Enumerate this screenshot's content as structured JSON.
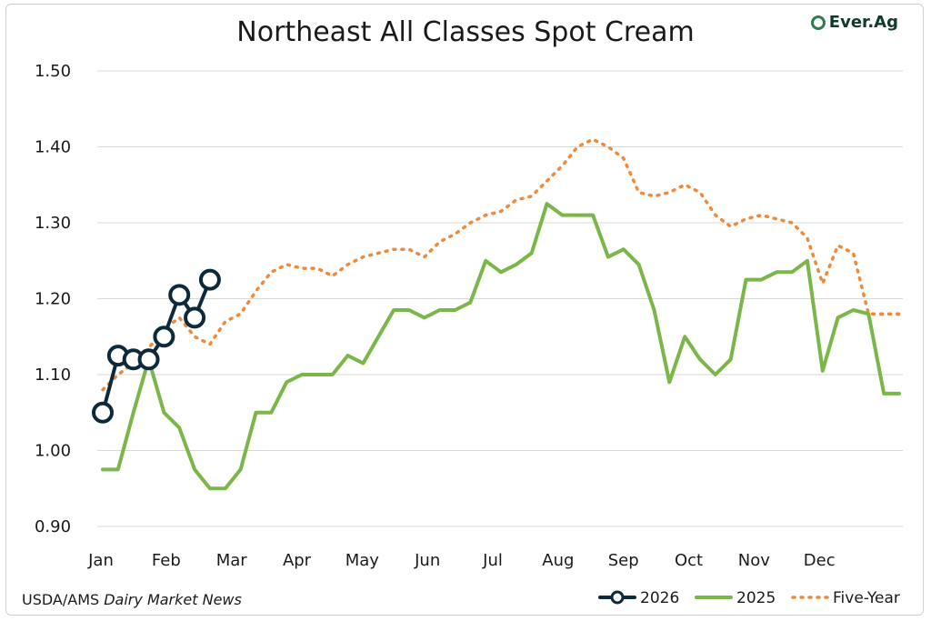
{
  "title": "Northeast All Classes Spot Cream",
  "brand": "Ever.Ag",
  "source_prefix": "USDA/AMS ",
  "source_italic": "Dairy Market News",
  "colors": {
    "s2026": "#0d2a3a",
    "s2025": "#7ab648",
    "five": "#ee8a3c",
    "grid": "#d9d9d9"
  },
  "chart_data": {
    "type": "line",
    "title": "Northeast All Classes Spot Cream",
    "xlabel": "",
    "ylabel": "",
    "ylim": [
      0.9,
      1.5
    ],
    "yticks": [
      "0.90",
      "1.00",
      "1.10",
      "1.20",
      "1.30",
      "1.40",
      "1.50"
    ],
    "xlim_weeks": [
      1,
      53
    ],
    "months": [
      "Jan",
      "Feb",
      "Mar",
      "Apr",
      "May",
      "Jun",
      "Jul",
      "Aug",
      "Sep",
      "Oct",
      "Nov",
      "Dec"
    ],
    "grid": true,
    "legend": "bottom-right",
    "series": [
      {
        "name": "2026",
        "style": "line-circle-markers",
        "x": [
          1,
          2,
          3,
          4,
          5,
          6,
          7,
          8
        ],
        "values": [
          1.05,
          1.125,
          1.12,
          1.12,
          1.15,
          1.205,
          1.175,
          1.225
        ]
      },
      {
        "name": "2025",
        "style": "solid",
        "x": [
          1,
          2,
          3,
          4,
          5,
          6,
          7,
          8,
          9,
          10,
          11,
          12,
          13,
          14,
          15,
          16,
          17,
          18,
          19,
          20,
          21,
          22,
          23,
          24,
          25,
          26,
          27,
          28,
          29,
          30,
          31,
          32,
          33,
          34,
          35,
          36,
          37,
          38,
          39,
          40,
          41,
          42,
          43,
          44,
          45,
          46,
          47,
          48,
          49,
          50,
          51,
          52,
          53
        ],
        "values": [
          0.975,
          0.975,
          1.05,
          1.12,
          1.05,
          1.03,
          0.975,
          0.95,
          0.95,
          0.975,
          1.05,
          1.05,
          1.09,
          1.1,
          1.1,
          1.1,
          1.125,
          1.115,
          1.15,
          1.185,
          1.185,
          1.175,
          1.185,
          1.185,
          1.195,
          1.25,
          1.235,
          1.245,
          1.26,
          1.325,
          1.31,
          1.31,
          1.31,
          1.255,
          1.265,
          1.245,
          1.185,
          1.09,
          1.15,
          1.12,
          1.1,
          1.12,
          1.225,
          1.225,
          1.235,
          1.235,
          1.25,
          1.105,
          1.175,
          1.185,
          1.18,
          1.075,
          1.075
        ]
      },
      {
        "name": "Five-Year",
        "style": "dotted",
        "x": [
          1,
          2,
          3,
          4,
          5,
          6,
          7,
          8,
          9,
          10,
          11,
          12,
          13,
          14,
          15,
          16,
          17,
          18,
          19,
          20,
          21,
          22,
          23,
          24,
          25,
          26,
          27,
          28,
          29,
          30,
          31,
          32,
          33,
          34,
          35,
          36,
          37,
          38,
          39,
          40,
          41,
          42,
          43,
          44,
          45,
          46,
          47,
          48,
          49,
          50,
          51,
          52,
          53
        ],
        "values": [
          1.08,
          1.1,
          1.115,
          1.135,
          1.16,
          1.175,
          1.15,
          1.14,
          1.17,
          1.18,
          1.21,
          1.235,
          1.245,
          1.24,
          1.24,
          1.23,
          1.245,
          1.255,
          1.26,
          1.265,
          1.265,
          1.255,
          1.275,
          1.285,
          1.3,
          1.31,
          1.315,
          1.33,
          1.335,
          1.355,
          1.375,
          1.4,
          1.41,
          1.4,
          1.385,
          1.34,
          1.335,
          1.34,
          1.35,
          1.34,
          1.31,
          1.295,
          1.305,
          1.31,
          1.305,
          1.3,
          1.28,
          1.22,
          1.27,
          1.26,
          1.18,
          1.18,
          1.18
        ]
      }
    ]
  }
}
